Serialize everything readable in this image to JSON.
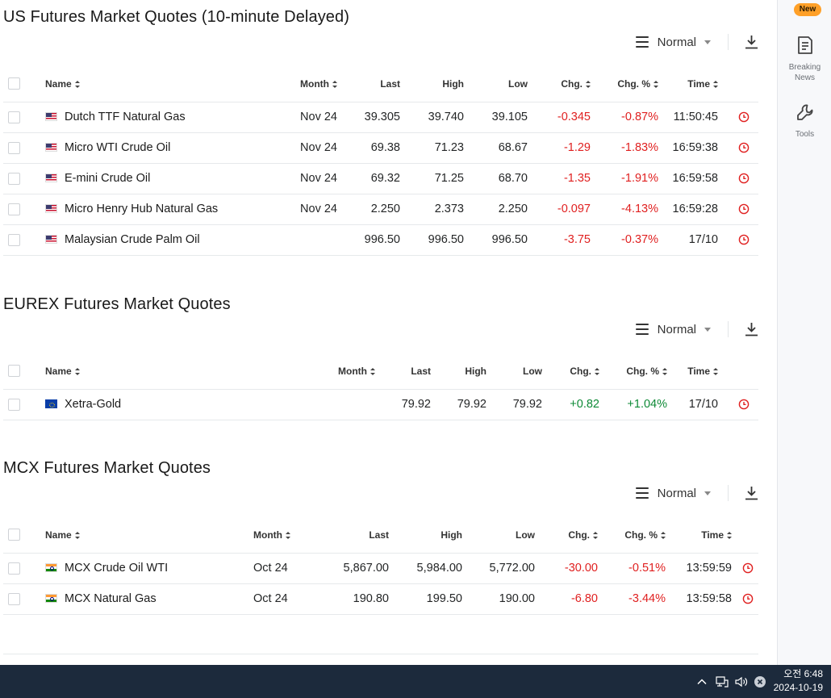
{
  "sections": [
    {
      "title": "US Futures Market Quotes (10-minute Delayed)",
      "view": "Normal",
      "columns": {
        "name": "Name",
        "month": "Month",
        "last": "Last",
        "high": "High",
        "low": "Low",
        "chg": "Chg.",
        "chg_pct": "Chg. %",
        "time": "Time"
      },
      "rows": [
        {
          "flag": "us",
          "name": "Dutch TTF Natural Gas",
          "month": "Nov 24",
          "last": "39.305",
          "high": "39.740",
          "low": "39.105",
          "chg": "-0.345",
          "chg_pct": "-0.87%",
          "time": "11:50:45"
        },
        {
          "flag": "us",
          "name": "Micro WTI Crude Oil",
          "month": "Nov 24",
          "last": "69.38",
          "high": "71.23",
          "low": "68.67",
          "chg": "-1.29",
          "chg_pct": "-1.83%",
          "time": "16:59:38"
        },
        {
          "flag": "us",
          "name": "E-mini Crude Oil",
          "month": "Nov 24",
          "last": "69.32",
          "high": "71.25",
          "low": "68.70",
          "chg": "-1.35",
          "chg_pct": "-1.91%",
          "time": "16:59:58"
        },
        {
          "flag": "us",
          "name": "Micro Henry Hub Natural Gas",
          "month": "Nov 24",
          "last": "2.250",
          "high": "2.373",
          "low": "2.250",
          "chg": "-0.097",
          "chg_pct": "-4.13%",
          "time": "16:59:28"
        },
        {
          "flag": "us",
          "name": "Malaysian Crude Palm Oil",
          "month": "",
          "last": "996.50",
          "high": "996.50",
          "low": "996.50",
          "chg": "-3.75",
          "chg_pct": "-0.37%",
          "time": "17/10"
        }
      ]
    },
    {
      "title": "EUREX Futures Market Quotes",
      "view": "Normal",
      "columns": {
        "name": "Name",
        "month": "Month",
        "last": "Last",
        "high": "High",
        "low": "Low",
        "chg": "Chg.",
        "chg_pct": "Chg. %",
        "time": "Time"
      },
      "rows": [
        {
          "flag": "eu",
          "name": "Xetra-Gold",
          "month": "",
          "last": "79.92",
          "high": "79.92",
          "low": "79.92",
          "chg": "+0.82",
          "chg_pct": "+1.04%",
          "time": "17/10"
        }
      ]
    },
    {
      "title": "MCX Futures Market Quotes",
      "view": "Normal",
      "columns": {
        "name": "Name",
        "month": "Month",
        "last": "Last",
        "high": "High",
        "low": "Low",
        "chg": "Chg.",
        "chg_pct": "Chg. %",
        "time": "Time"
      },
      "rows": [
        {
          "flag": "in",
          "name": "MCX Crude Oil WTI",
          "month": "Oct 24",
          "last": "5,867.00",
          "high": "5,984.00",
          "low": "5,772.00",
          "chg": "-30.00",
          "chg_pct": "-0.51%",
          "time": "13:59:59"
        },
        {
          "flag": "in",
          "name": "MCX Natural Gas",
          "month": "Oct 24",
          "last": "190.80",
          "high": "199.50",
          "low": "190.00",
          "chg": "-6.80",
          "chg_pct": "-3.44%",
          "time": "13:59:58"
        }
      ]
    }
  ],
  "sidebar": {
    "badge": "New",
    "items": [
      {
        "label_line1": "Breaking",
        "label_line2": "News",
        "icon": "news-icon"
      },
      {
        "label_line1": "Tools",
        "label_line2": "",
        "icon": "wrench-icon"
      }
    ]
  },
  "taskbar": {
    "time": "오전 6:48",
    "date": "2024-10-19"
  },
  "colors": {
    "negative": "#e02020",
    "positive": "#0e8a36",
    "badge": "#ffa028",
    "taskbar": "#1c2a3c"
  }
}
